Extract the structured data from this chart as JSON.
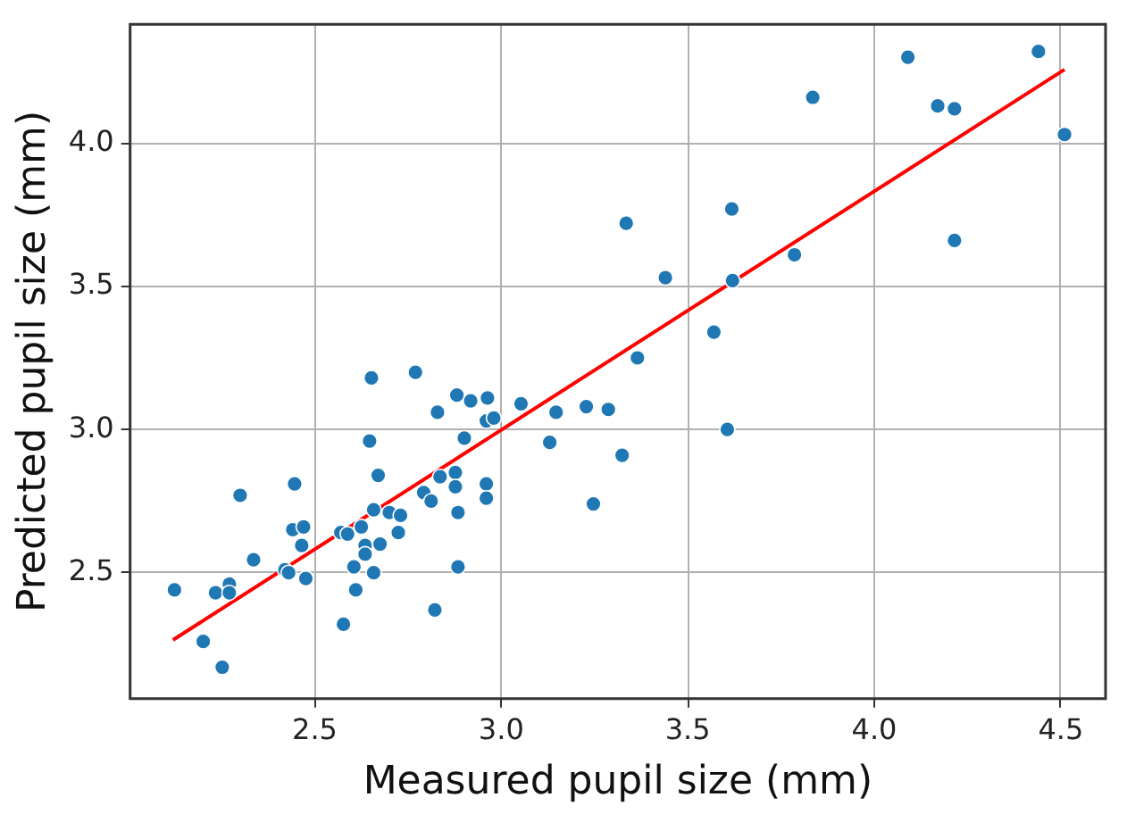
{
  "chart_data": {
    "type": "scatter",
    "xlabel": "Measured pupil size (mm)",
    "ylabel": "Predicted pupil size (mm)",
    "xlim": [
      2.005,
      4.62
    ],
    "ylim": [
      2.06,
      4.415
    ],
    "xticks": [
      2.5,
      {
        "value": 3,
        "label": "3.0"
      },
      3.5,
      {
        "value": 4,
        "label": "4.0"
      },
      4.5
    ],
    "yticks": [
      2.5,
      {
        "value": 3,
        "label": "3.0"
      },
      3.5,
      {
        "value": 4,
        "label": "4.0"
      }
    ],
    "grid": true,
    "legend": false,
    "series": [
      {
        "color": "#1f77b4",
        "marker": "circle",
        "x": [
          4.09,
          4.44,
          3.835,
          4.17,
          4.215,
          4.51,
          3.335,
          3.618,
          3.44,
          3.62,
          3.786,
          4.215,
          3.57,
          3.365,
          3.228,
          3.287,
          3.324,
          3.247,
          3.606,
          2.124,
          2.201,
          2.252,
          2.234,
          2.271,
          2.271,
          2.3,
          2.336,
          2.42,
          2.43,
          2.446,
          2.441,
          2.47,
          2.465,
          2.476,
          2.57,
          2.588,
          2.625,
          2.577,
          2.605,
          2.61,
          2.635,
          2.635,
          2.658,
          2.652,
          2.647,
          2.67,
          2.658,
          2.675,
          2.7,
          2.73,
          2.724,
          2.77,
          2.792,
          2.812,
          2.822,
          2.829,
          2.836,
          2.877,
          2.877,
          2.884,
          2.884,
          2.881,
          2.918,
          2.901,
          2.963,
          2.96,
          2.98,
          2.96,
          2.96,
          3.053,
          3.147,
          3.13
        ],
        "values": [
          4.3,
          4.32,
          4.16,
          4.13,
          4.12,
          4.03,
          3.72,
          3.77,
          3.53,
          3.52,
          3.61,
          3.66,
          3.34,
          3.25,
          3.08,
          3.07,
          2.91,
          2.74,
          3.0,
          2.44,
          2.26,
          2.17,
          2.43,
          2.46,
          2.43,
          2.77,
          2.545,
          2.51,
          2.5,
          2.81,
          2.65,
          2.66,
          2.595,
          2.48,
          2.64,
          2.635,
          2.66,
          2.32,
          2.52,
          2.44,
          2.595,
          2.565,
          2.5,
          3.18,
          2.96,
          2.84,
          2.72,
          2.6,
          2.71,
          2.7,
          2.64,
          3.2,
          2.78,
          2.75,
          2.37,
          3.06,
          2.835,
          2.85,
          2.8,
          2.71,
          2.52,
          3.12,
          3.1,
          2.97,
          3.11,
          3.03,
          3.04,
          2.81,
          2.76,
          3.09,
          3.06,
          2.955
        ]
      },
      {
        "type": "line",
        "marker": "none",
        "color": "#ff0000",
        "x": [
          2.12,
          4.51
        ],
        "values": [
          2.265,
          4.257
        ]
      }
    ]
  }
}
